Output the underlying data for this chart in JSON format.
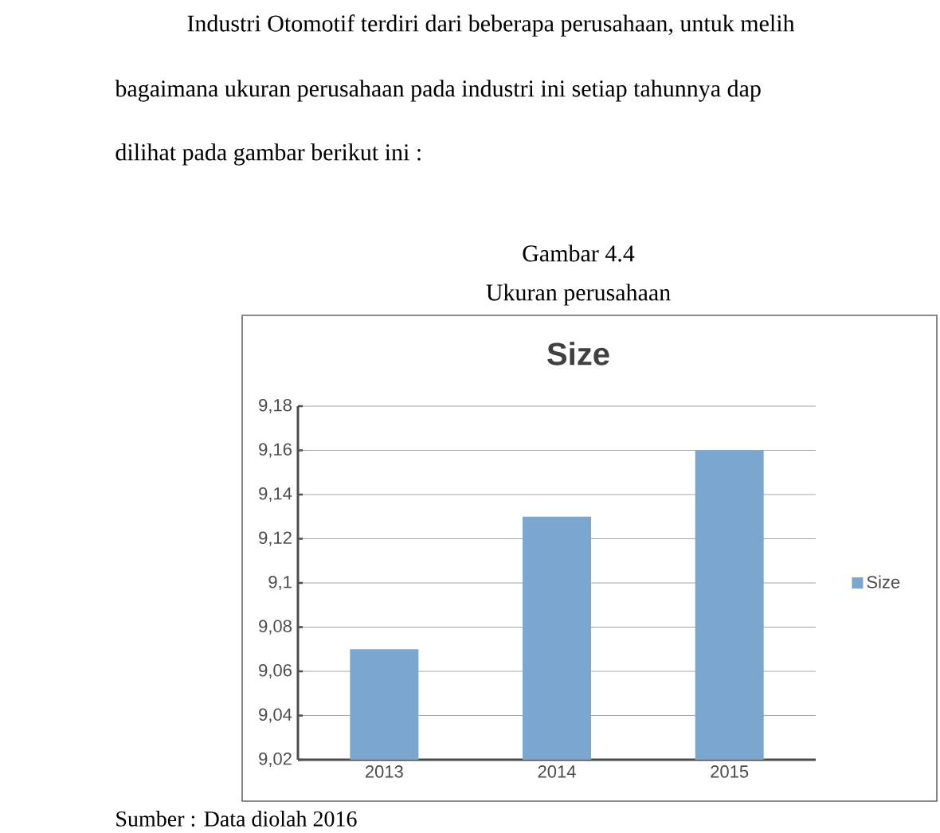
{
  "chart_data": {
    "type": "bar",
    "title": "Size",
    "categories": [
      "2013",
      "2014",
      "2015"
    ],
    "series": [
      {
        "name": "Size",
        "color": "#7ba7cf",
        "values": [
          9.07,
          9.13,
          9.16
        ]
      }
    ],
    "ylim": [
      9.02,
      9.18
    ],
    "yticks": [
      {
        "value": 9.02,
        "label": "9,02"
      },
      {
        "value": 9.04,
        "label": "9,04"
      },
      {
        "value": 9.06,
        "label": "9,06"
      },
      {
        "value": 9.08,
        "label": "9,08"
      },
      {
        "value": 9.1,
        "label": "9,1"
      },
      {
        "value": 9.12,
        "label": "9,12"
      },
      {
        "value": 9.14,
        "label": "9,14"
      },
      {
        "value": 9.16,
        "label": "9,16"
      },
      {
        "value": 9.18,
        "label": "9,18"
      }
    ],
    "grid": "y",
    "legend": "right",
    "annotations": [
      "Industri Otomotif terdiri dari beberapa perusahaan, untuk melih",
      "bagaimana ukuran perusahaan pada industri ini setiap tahunnya dap",
      "dilihat pada gambar berikut ini :",
      "Gambar 4.4",
      "Ukuran perusahaan",
      "Sumber : Data diolah 2016"
    ]
  }
}
